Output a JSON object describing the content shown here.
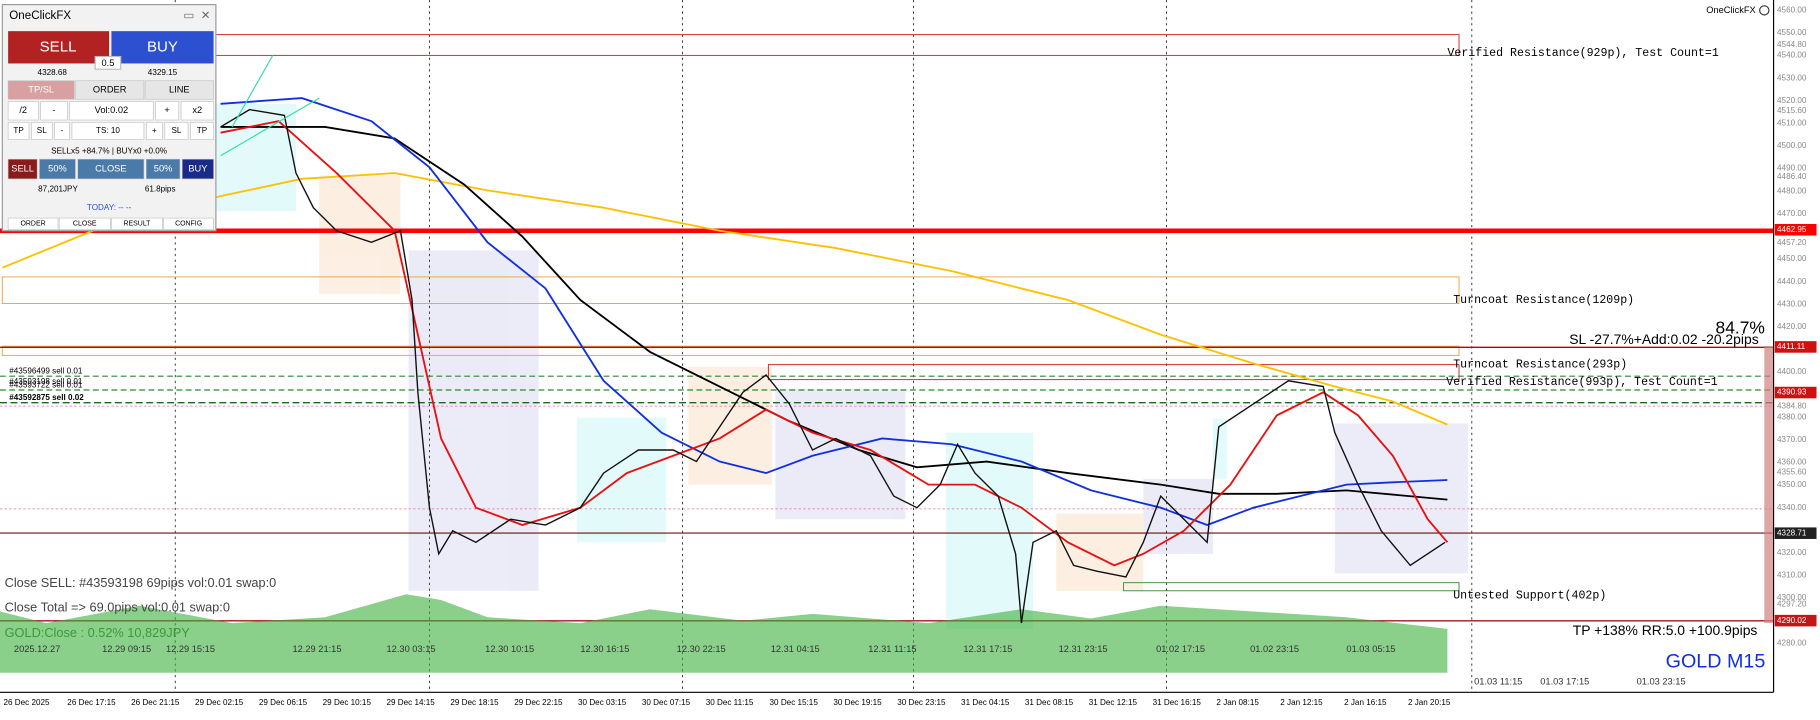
{
  "panel": {
    "title": "OneClickFX",
    "sell": "SELL",
    "buy": "BUY",
    "spread": "0.5",
    "bid": "4328.68",
    "ask": "4329.15",
    "tabs": [
      "TP/SL",
      "ORDER",
      "LINE"
    ],
    "vol_row": [
      "/2",
      "-",
      "Vol:0.02",
      "+",
      "x2"
    ],
    "ts_row": [
      "TP",
      "SL",
      "-",
      "TS: 10",
      "+",
      "SL",
      "TP"
    ],
    "status": "SELLx5 +84.7% | BUYx0 +0.0%",
    "close_row": [
      "SELL",
      "50%",
      "CLOSE",
      "50%",
      "BUY"
    ],
    "profit": "87,201JPY",
    "pips": "61.8pips",
    "today": "TODAY: -- --",
    "footer": [
      "ORDER",
      "CLOSE",
      "RESULT",
      "CONFIG"
    ]
  },
  "chart": {
    "brand": "OneClickFX",
    "symbol": "GOLD M15",
    "price_labels": [
      "4560.00",
      "4550.00",
      "4544.80",
      "4540.00",
      "4530.00",
      "4520.00",
      "4515.60",
      "4510.00",
      "4500.00",
      "4490.00",
      "4486.40",
      "4480.00",
      "4470.00",
      "4457.20",
      "4450.00",
      "4440.00",
      "4430.00",
      "4420.00",
      "4400.00",
      "4384.80",
      "4380.00",
      "4370.00",
      "4360.00",
      "4355.60",
      "4350.00",
      "4340.00",
      "4320.00",
      "4310.00",
      "4300.00",
      "4297.20",
      "4280.00"
    ],
    "highlight_labels": [
      {
        "text": "4462.95",
        "color": "#ff0000"
      },
      {
        "text": "4411.11",
        "color": "#d01010"
      },
      {
        "text": "4390.93",
        "color": "#d01010"
      },
      {
        "text": "4328.71",
        "color": "#202020"
      },
      {
        "text": "4290.02",
        "color": "#c01818"
      }
    ],
    "session_labels": [
      "2025.12.27",
      "12.29 09:15",
      "12.29 15:15",
      "12.29 21:15",
      "12.30 03:15",
      "12.30 10:15",
      "12.30 16:15",
      "12.30 22:15",
      "12.31 04:15",
      "12.31 11:15",
      "12.31 17:15",
      "12.31 23:15",
      "01.02 17:15",
      "01.02 23:15",
      "01.03 05:15"
    ],
    "future_labels": [
      "01.03 11:15",
      "01.03 17:15",
      "01.03 23:15"
    ],
    "time_labels": [
      "26 Dec 2025",
      "26 Dec 17:15",
      "26 Dec 21:15",
      "29 Dec 02:15",
      "29 Dec 06:15",
      "29 Dec 10:15",
      "29 Dec 14:15",
      "29 Dec 18:15",
      "29 Dec 22:15",
      "30 Dec 03:15",
      "30 Dec 07:15",
      "30 Dec 11:15",
      "30 Dec 15:15",
      "30 Dec 19:15",
      "30 Dec 23:15",
      "31 Dec 04:15",
      "31 Dec 08:15",
      "31 Dec 12:15",
      "31 Dec 16:15",
      "2 Jan 08:15",
      "2 Jan 12:15",
      "2 Jan 16:15",
      "2 Jan 20:15"
    ],
    "annotations": {
      "verified_929": "Verified Resistance(929p), Test Count=1",
      "turncoat_1209": "Turncoat Resistance(1209p)",
      "percent": "84.7%",
      "sl": "SL -27.7%+Add:0.02 -20.2pips",
      "turncoat_293": "Turncoat Resistance(293p)",
      "verified_993": "Verified Resistance(993p), Test Count=1",
      "untested_402": "Untested Support(402p)",
      "tp": "TP +138% RR:5.0 +100.9pips"
    },
    "orders": [
      "#43596499 sell 0.01",
      "#43593198 sell 0.01",
      "#43593722 sell 0.01",
      "#43592875 sell 0.02"
    ],
    "info": [
      "Close SELL: #43593198 69pips vol:0.01 swap:0",
      "Close Total => 69.0pips vol:0.01 swap:0",
      "GOLD:Close : 0.52% 10,829JPY"
    ]
  }
}
